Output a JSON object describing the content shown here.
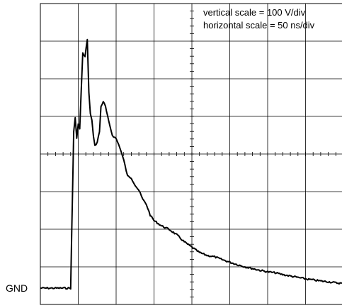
{
  "annotations": {
    "vertical_scale": "vertical scale = 100 V/div",
    "horizontal_scale": "horizontal scale = 50 ns/div",
    "gnd_label": "GND"
  },
  "chart_data": {
    "type": "line",
    "title": "",
    "xlabel": "",
    "ylabel": "",
    "x_unit": "ns",
    "y_unit": "V",
    "x_divisions": 8,
    "y_divisions": 8,
    "x_per_div": 50,
    "y_per_div": 100,
    "xlim": [
      0,
      400
    ],
    "ylim": [
      0,
      800
    ],
    "grid": true,
    "color": "#000000",
    "series": [
      {
        "x": [
          0,
          20,
          40,
          44,
          46,
          48,
          50,
          52,
          54,
          56,
          59,
          62,
          64,
          66,
          68,
          70,
          72,
          75,
          78,
          80,
          83,
          86,
          90,
          95,
          100,
          105,
          110,
          115,
          120,
          125,
          130,
          135,
          140,
          145,
          150,
          160,
          170,
          180,
          190,
          200,
          210,
          220,
          230,
          240,
          250,
          260,
          270,
          280,
          290,
          300,
          310,
          320,
          330,
          340,
          350,
          360,
          370,
          380,
          390,
          400
        ],
        "y": [
          0,
          0,
          0,
          440,
          480,
          420,
          460,
          450,
          560,
          660,
          650,
          700,
          550,
          490,
          470,
          430,
          400,
          410,
          440,
          510,
          525,
          510,
          470,
          430,
          420,
          395,
          360,
          315,
          310,
          290,
          275,
          250,
          235,
          205,
          190,
          175,
          165,
          150,
          130,
          115,
          100,
          92,
          88,
          80,
          73,
          66,
          60,
          55,
          50,
          46,
          43,
          38,
          34,
          30,
          26,
          23,
          20,
          18,
          15,
          13
        ]
      }
    ]
  }
}
